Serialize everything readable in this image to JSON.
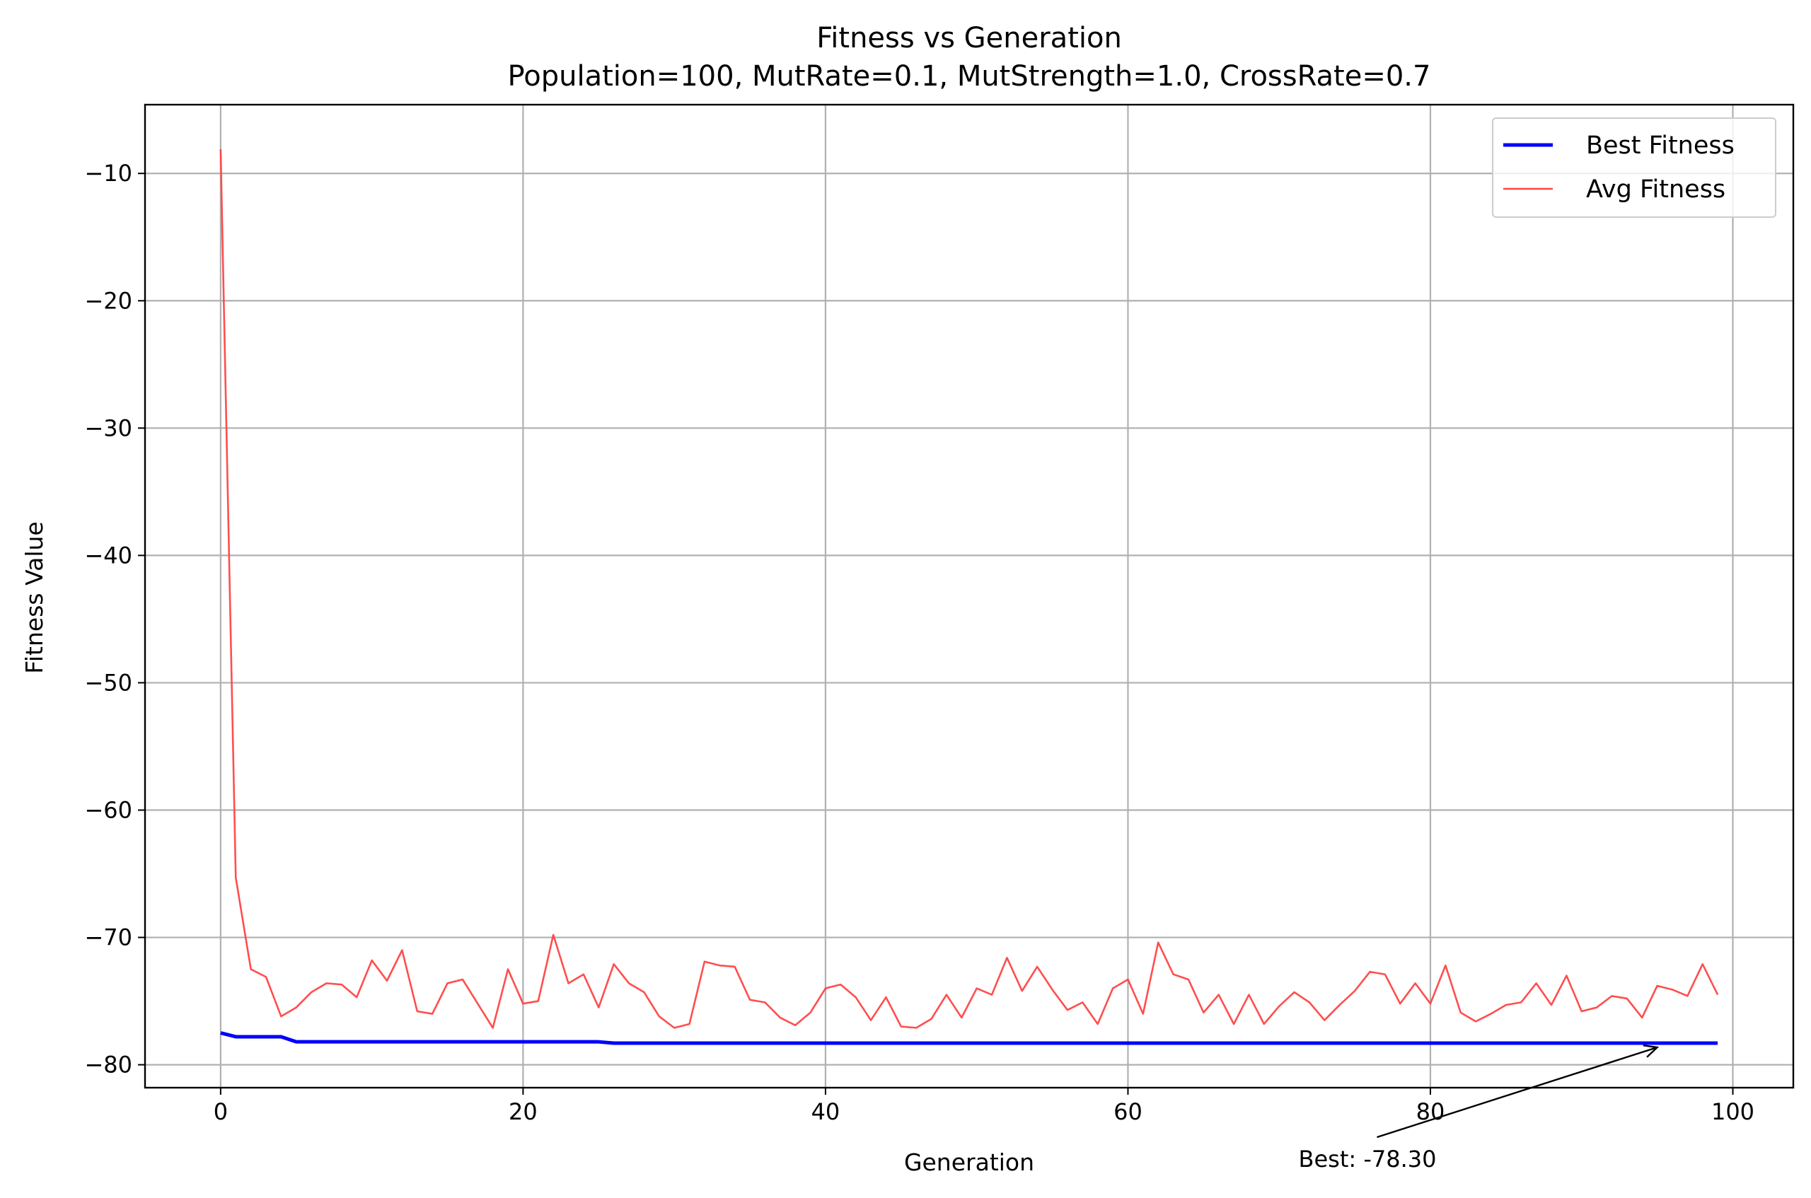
{
  "chart_data": {
    "type": "line",
    "title": "Fitness vs Generation",
    "subtitle": "Population=100, MutRate=0.1, MutStrength=1.0, CrossRate=0.7",
    "xlabel": "Generation",
    "ylabel": "Fitness Value",
    "xlim": [
      -5,
      104
    ],
    "ylim": [
      -81.8,
      -4.6
    ],
    "xticks": [
      0,
      20,
      40,
      60,
      80,
      100
    ],
    "xtick_labels": [
      "0",
      "20",
      "40",
      "60",
      "80",
      "100"
    ],
    "yticks": [
      -10,
      -20,
      -30,
      -40,
      -50,
      -60,
      -70,
      -80
    ],
    "ytick_labels": [
      "−10",
      "−20",
      "−30",
      "−40",
      "−50",
      "−60",
      "−70",
      "−80"
    ],
    "grid": true,
    "legend_position": "top-right",
    "x": [
      0,
      1,
      2,
      3,
      4,
      5,
      6,
      7,
      8,
      9,
      10,
      11,
      12,
      13,
      14,
      15,
      16,
      17,
      18,
      19,
      20,
      21,
      22,
      23,
      24,
      25,
      26,
      27,
      28,
      29,
      30,
      31,
      32,
      33,
      34,
      35,
      36,
      37,
      38,
      39,
      40,
      41,
      42,
      43,
      44,
      45,
      46,
      47,
      48,
      49,
      50,
      51,
      52,
      53,
      54,
      55,
      56,
      57,
      58,
      59,
      60,
      61,
      62,
      63,
      64,
      65,
      66,
      67,
      68,
      69,
      70,
      71,
      72,
      73,
      74,
      75,
      76,
      77,
      78,
      79,
      80,
      81,
      82,
      83,
      84,
      85,
      86,
      87,
      88,
      89,
      90,
      91,
      92,
      93,
      94,
      95,
      96,
      97,
      98,
      99
    ],
    "series": [
      {
        "name": "Best Fitness",
        "color": "#0000ff",
        "values": [
          -77.5,
          -77.8,
          -77.8,
          -77.8,
          -77.8,
          -78.2,
          -78.2,
          -78.2,
          -78.2,
          -78.2,
          -78.2,
          -78.2,
          -78.2,
          -78.2,
          -78.2,
          -78.2,
          -78.2,
          -78.2,
          -78.2,
          -78.2,
          -78.2,
          -78.2,
          -78.2,
          -78.2,
          -78.2,
          -78.2,
          -78.3,
          -78.3,
          -78.3,
          -78.3,
          -78.3,
          -78.3,
          -78.3,
          -78.3,
          -78.3,
          -78.3,
          -78.3,
          -78.3,
          -78.3,
          -78.3,
          -78.3,
          -78.3,
          -78.3,
          -78.3,
          -78.3,
          -78.3,
          -78.3,
          -78.3,
          -78.3,
          -78.3,
          -78.3,
          -78.3,
          -78.3,
          -78.3,
          -78.3,
          -78.3,
          -78.3,
          -78.3,
          -78.3,
          -78.3,
          -78.3,
          -78.3,
          -78.3,
          -78.3,
          -78.3,
          -78.3,
          -78.3,
          -78.3,
          -78.3,
          -78.3,
          -78.3,
          -78.3,
          -78.3,
          -78.3,
          -78.3,
          -78.3,
          -78.3,
          -78.3,
          -78.3,
          -78.3,
          -78.3,
          -78.3,
          -78.3,
          -78.3,
          -78.3,
          -78.3,
          -78.3,
          -78.3,
          -78.3,
          -78.3,
          -78.3,
          -78.3,
          -78.3,
          -78.3,
          -78.3,
          -78.3,
          -78.3,
          -78.3,
          -78.3,
          -78.3
        ]
      },
      {
        "name": "Avg Fitness",
        "color": "#ff4444",
        "values": [
          -8.1,
          -65.3,
          -72.5,
          -73.1,
          -76.2,
          -75.5,
          -74.3,
          -73.6,
          -73.7,
          -74.7,
          -71.8,
          -73.4,
          -71.0,
          -75.8,
          -76.0,
          -73.6,
          -73.3,
          -75.2,
          -77.1,
          -72.5,
          -75.2,
          -75.0,
          -69.8,
          -73.6,
          -72.9,
          -75.5,
          -72.1,
          -73.6,
          -74.3,
          -76.2,
          -77.1,
          -76.8,
          -71.9,
          -72.2,
          -72.3,
          -74.9,
          -75.1,
          -76.3,
          -76.9,
          -75.9,
          -74.0,
          -73.7,
          -74.7,
          -76.5,
          -74.7,
          -77.0,
          -77.1,
          -76.4,
          -74.5,
          -76.3,
          -74.0,
          -74.5,
          -71.6,
          -74.2,
          -72.3,
          -74.1,
          -75.7,
          -75.1,
          -76.8,
          -74.0,
          -73.3,
          -76.0,
          -70.4,
          -72.9,
          -73.3,
          -75.9,
          -74.5,
          -76.8,
          -74.5,
          -76.8,
          -75.4,
          -74.3,
          -75.1,
          -76.5,
          -75.3,
          -74.2,
          -72.7,
          -72.9,
          -75.2,
          -73.6,
          -75.2,
          -72.2,
          -75.9,
          -76.6,
          -76.0,
          -75.3,
          -75.1,
          -73.6,
          -75.3,
          -73.0,
          -75.8,
          -75.5,
          -74.6,
          -74.8,
          -76.3,
          -73.8,
          -74.1,
          -74.6,
          -72.1,
          -74.5
        ]
      }
    ],
    "annotation": {
      "text": "Best: -78.30",
      "xy": [
        95,
        -78.3
      ],
      "xytext": [
        76,
        -86.8
      ]
    }
  }
}
